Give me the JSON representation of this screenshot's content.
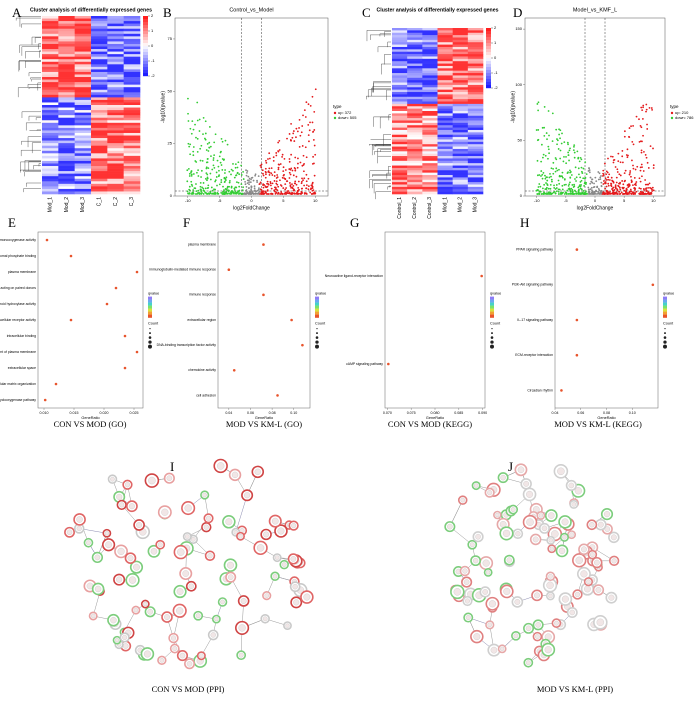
{
  "panels": {
    "A": {
      "letter": "A",
      "title": "Cluster analysis of differentially expressed genes",
      "columns": [
        "Mod_1",
        "Mod_2",
        "Mod_3",
        "C_1",
        "C_2",
        "C_3"
      ],
      "colorbar_ticks": [
        2,
        1,
        0,
        -1,
        -2
      ]
    },
    "B": {
      "letter": "B",
      "title": "Control_vs_Model",
      "x_label": "log2FoldChange",
      "y_label": "-log10(pvalue)",
      "xlim": [
        -12,
        12
      ],
      "xticks": [
        -10,
        -5,
        0,
        5,
        10
      ],
      "ylim": [
        0,
        85
      ],
      "yticks": [
        0,
        25,
        50,
        75
      ],
      "legend_title": "type",
      "legend": [
        "up: 372",
        "down: 505"
      ],
      "colors": [
        "#e41a1c",
        "#33cc33"
      ]
    },
    "C": {
      "letter": "C",
      "title": "Cluster analysis of differentially expressed genes",
      "columns": [
        "Control_1",
        "Control_2",
        "Control_3",
        "Mod_1",
        "Mod_2",
        "Mod_3"
      ],
      "colorbar_ticks": [
        2,
        1,
        0,
        -1,
        -2
      ]
    },
    "D": {
      "letter": "D",
      "title": "Model_vs_KMF_L",
      "x_label": "log2FoldChange",
      "y_label": "-log10(pvalue)",
      "xlim": [
        -12,
        12
      ],
      "xticks": [
        -10,
        -5,
        0,
        5,
        10
      ],
      "ylim": [
        0,
        160
      ],
      "yticks": [
        0,
        50,
        100,
        150
      ],
      "legend_title": "type",
      "legend": [
        "up: 210",
        "down: 786"
      ],
      "colors": [
        "#e41a1c",
        "#33cc33"
      ]
    },
    "E": {
      "letter": "E",
      "caption": "CON VS MOD (GO)",
      "x_label": "GeneRatio",
      "color": "#e8542c",
      "terms": [
        "monooxygenase activity",
        "peroxisomal phosphate binding",
        "plasma membrane",
        "oxidoreductase activity, acting on paired donors",
        "steroid hydroxylase activity",
        "intracellular receptor activity",
        "intracellular binding",
        "integral component of plasma membrane",
        "extracellular space",
        "extracellular matrix organization",
        "cyclooxygenase pathway"
      ],
      "gene_ratio": [
        0.0105,
        0.0145,
        0.0255,
        0.022,
        0.0205,
        0.0145,
        0.0235,
        0.0255,
        0.0235,
        0.012,
        0.0102
      ],
      "xlim": [
        0.009,
        0.0265
      ],
      "xticks": [
        {
          "value": 0.01,
          "label": "0.010"
        },
        0.015,
        {
          "value": 0.02,
          "label": "0.020"
        },
        0.025
      ],
      "qvalue_label": "qvalue",
      "count_label": "Count"
    },
    "F": {
      "letter": "F",
      "caption": "MOD VS KM-L (GO)",
      "x_label": "GeneRatio",
      "color": "#e8542c",
      "terms": [
        "plasma membrane",
        "immunoglobulin-mediated immune response",
        "immune response",
        "extracellular region",
        "DNA-binding transcription factor activity",
        "chemokine activity",
        "cell adhesion"
      ],
      "gene_ratio": [
        0.072,
        0.04,
        0.072,
        0.098,
        0.108,
        0.045,
        0.085
      ],
      "xlim": [
        0.03,
        0.115
      ],
      "xticks": [
        0.04,
        0.06,
        0.08,
        {
          "value": 0.1,
          "label": "0.10"
        }
      ],
      "qvalue_label": "qvalue",
      "count_label": "Count"
    },
    "G": {
      "letter": "G",
      "caption": "CON VS MOD (KEGG)",
      "x_label": "GeneRatio",
      "color": "#e8542c",
      "terms": [
        "Neuroactive ligand-receptor interaction",
        "cAMP signaling pathway"
      ],
      "gene_ratio": [
        0.0898,
        0.0702
      ],
      "xlim": [
        0.0695,
        0.0905
      ],
      "xticks": [
        {
          "value": 0.07,
          "label": "0.070"
        },
        0.075,
        {
          "value": 0.08,
          "label": "0.080"
        },
        0.085,
        {
          "value": 0.09,
          "label": "0.090"
        }
      ],
      "qvalue_label": "qvalue",
      "count_label": "Count"
    },
    "H": {
      "letter": "H",
      "caption": "MOD VS KM-L (KEGG)",
      "x_label": "GeneRatio",
      "color": "#e8542c",
      "terms": [
        "PPAR signaling pathway",
        "PI3K-Akt signaling pathway",
        "IL-17 signaling pathway",
        "ECM-receptor interaction",
        "Circadian rhythm"
      ],
      "gene_ratio": [
        0.057,
        0.116,
        0.057,
        0.057,
        0.045
      ],
      "xlim": [
        0.04,
        0.12
      ],
      "xticks": [
        0.04,
        0.06,
        0.08,
        {
          "value": 0.1,
          "label": "0.10"
        }
      ],
      "qvalue_label": "qvalue",
      "count_label": "Count"
    }
  },
  "networks": {
    "I": {
      "letter": "I",
      "caption": "CON VS MOD (PPI)"
    },
    "J": {
      "letter": "J",
      "caption": "MOD VS KM-L (PPI)"
    }
  }
}
